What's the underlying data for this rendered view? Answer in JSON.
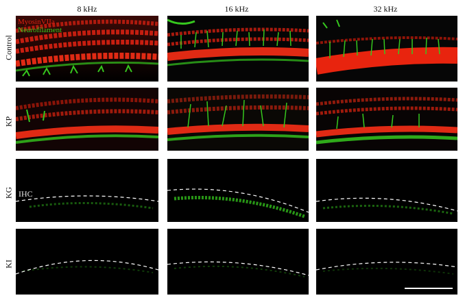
{
  "columns": [
    "8 kHz",
    "16 kHz",
    "32 kHz"
  ],
  "rows": [
    "Control",
    "KP",
    "KG",
    "KI"
  ],
  "legend": {
    "red_label": "MyosinVIIa",
    "green_label": "Neurofilament"
  },
  "annotation": {
    "ihc": "IHC"
  },
  "colors": {
    "myosin": "#e02010",
    "neurofilament": "#36c81e",
    "background": "#000000",
    "guide": "#ffffff"
  }
}
